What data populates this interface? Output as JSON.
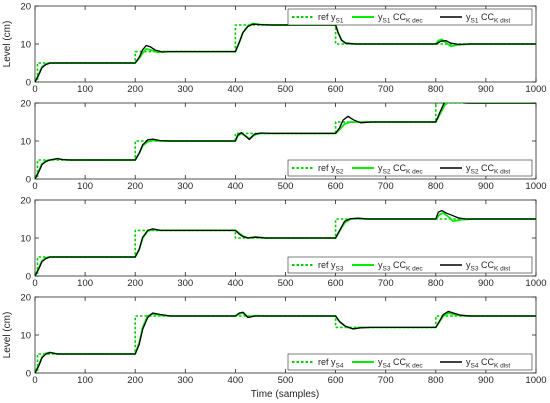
{
  "chart_data": {
    "type": "line",
    "xlabel": "Time (samples)",
    "xlim": [
      0,
      1000
    ],
    "xticks": [
      0,
      100,
      200,
      300,
      400,
      500,
      600,
      700,
      800,
      900,
      1000
    ],
    "colors": {
      "reference": "#00cc00",
      "decentralized": "#00ee00",
      "distributed": "#000000"
    },
    "panels": [
      {
        "ylabel": "Level (cm)",
        "ylim": [
          0,
          20
        ],
        "yticks": [
          0,
          10,
          20
        ],
        "legend_position": "top-right",
        "legend": [
          {
            "prefix": "ref y",
            "sub": "S1",
            "mid": "",
            "sub2": ""
          },
          {
            "prefix": "y",
            "sub": "S1",
            "mid": " CC",
            "sub2": "K dec"
          },
          {
            "prefix": "y",
            "sub": "S1",
            "mid": " CC",
            "sub2": "K dist"
          }
        ],
        "series": [
          {
            "name": "ref yS1",
            "style": "reference",
            "x": [
              0,
              5,
              5,
              200,
              200,
              400,
              400,
              600,
              600,
              800,
              800,
              1000
            ],
            "y": [
              0,
              0,
              5,
              5,
              8,
              8,
              15,
              15,
              10,
              10,
              10,
              10
            ]
          },
          {
            "name": "yS1 CCK dec",
            "style": "decentralized",
            "x": [
              0,
              8,
              14,
              22,
              30,
              200,
              208,
              215,
              222,
              232,
              245,
              260,
              400,
              408,
              415,
              425,
              435,
              450,
              470,
              600,
              605,
              612,
              620,
              640,
              800,
              805,
              812,
              820,
              830,
              845,
              870,
              1000
            ],
            "y": [
              0,
              2.2,
              4,
              4.7,
              5,
              5,
              6.2,
              7.6,
              8.7,
              8.4,
              7.8,
              8,
              8,
              10.5,
              13,
              14.8,
              15.4,
              15.1,
              15,
              15,
              13,
              11,
              10.2,
              10,
              10,
              10.9,
              11.2,
              10.4,
              9.4,
              9.8,
              10,
              10
            ]
          },
          {
            "name": "yS1 CCK dist",
            "style": "distributed",
            "x": [
              0,
              8,
              14,
              22,
              30,
              200,
              208,
              215,
              222,
              230,
              240,
              255,
              270,
              400,
              408,
              415,
              425,
              435,
              450,
              470,
              600,
              605,
              612,
              620,
              640,
              800,
              810,
              820,
              830,
              845,
              870,
              1000
            ],
            "y": [
              0,
              2,
              3.8,
              4.6,
              5,
              5,
              6.5,
              8.5,
              9.6,
              9.3,
              8.4,
              7.9,
              8,
              8,
              10.5,
              13,
              14.6,
              15.2,
              15.1,
              15,
              15,
              13,
              11,
              10.2,
              10,
              10,
              10.7,
              10.9,
              10.2,
              9.9,
              10,
              10
            ]
          }
        ]
      },
      {
        "ylabel": "",
        "ylim": [
          0,
          20
        ],
        "yticks": [
          0,
          10,
          20
        ],
        "legend_position": "bottom-right",
        "legend": [
          {
            "prefix": "ref y",
            "sub": "S2",
            "mid": "",
            "sub2": ""
          },
          {
            "prefix": "y",
            "sub": "S2",
            "mid": " CC",
            "sub2": "K dec"
          },
          {
            "prefix": "y",
            "sub": "S2",
            "mid": " CC",
            "sub2": "K dist"
          }
        ],
        "series": [
          {
            "name": "ref yS2",
            "style": "reference",
            "x": [
              0,
              5,
              5,
              200,
              200,
              400,
              400,
              600,
              600,
              800,
              800,
              1000
            ],
            "y": [
              0,
              0,
              5,
              5,
              10,
              10,
              12,
              12,
              15,
              15,
              20,
              20
            ]
          },
          {
            "name": "yS2 CCK dec",
            "style": "decentralized",
            "x": [
              0,
              8,
              14,
              22,
              30,
              45,
              55,
              70,
              200,
              208,
              215,
              225,
              235,
              250,
              270,
              400,
              405,
              412,
              420,
              428,
              438,
              450,
              470,
              600,
              608,
              618,
              630,
              645,
              665,
              800,
              808,
              818,
              830,
              845,
              870,
              1000
            ],
            "y": [
              0,
              2.2,
              4,
              4.8,
              5,
              5.3,
              5.1,
              5,
              5,
              6.8,
              8.8,
              9.8,
              10.2,
              10,
              10,
              10,
              11.4,
              12,
              11.4,
              10.6,
              11.6,
              12,
              12,
              12,
              13,
              14.5,
              15,
              15,
              15,
              15,
              17,
              19.5,
              20.5,
              20.2,
              20,
              20
            ]
          },
          {
            "name": "yS2 CCK dist",
            "style": "distributed",
            "x": [
              0,
              8,
              14,
              22,
              30,
              45,
              55,
              70,
              200,
              208,
              215,
              225,
              235,
              250,
              270,
              400,
              405,
              412,
              420,
              428,
              438,
              450,
              470,
              600,
              608,
              615,
              625,
              635,
              650,
              670,
              800,
              808,
              818,
              828,
              840,
              860,
              1000
            ],
            "y": [
              0,
              2,
              3.8,
              4.6,
              5,
              5.4,
              5.1,
              5,
              5,
              6.8,
              9,
              10.3,
              10.5,
              10.1,
              10,
              10,
              11.6,
              12.2,
              11.3,
              10.4,
              11.8,
              12.1,
              12,
              12,
              13.5,
              15.5,
              16.5,
              15.6,
              14.8,
              15,
              15,
              17.5,
              20.4,
              21.2,
              20.4,
              20,
              20
            ]
          }
        ]
      },
      {
        "ylabel": "",
        "ylim": [
          0,
          20
        ],
        "yticks": [
          0,
          10,
          20
        ],
        "legend_position": "bottom-right",
        "legend": [
          {
            "prefix": "ref y",
            "sub": "S3",
            "mid": "",
            "sub2": ""
          },
          {
            "prefix": "y",
            "sub": "S3",
            "mid": " CC",
            "sub2": "K dec"
          },
          {
            "prefix": "y",
            "sub": "S3",
            "mid": " CC",
            "sub2": "K dist"
          }
        ],
        "series": [
          {
            "name": "ref yS3",
            "style": "reference",
            "x": [
              0,
              5,
              5,
              200,
              200,
              400,
              400,
              600,
              600,
              800,
              800,
              1000
            ],
            "y": [
              0,
              0,
              5,
              5,
              12,
              12,
              10,
              10,
              15,
              15,
              15,
              15
            ]
          },
          {
            "name": "yS3 CCK dec",
            "style": "decentralized",
            "x": [
              0,
              8,
              14,
              22,
              30,
              200,
              208,
              215,
              225,
              235,
              250,
              270,
              400,
              408,
              415,
              425,
              440,
              460,
              480,
              600,
              608,
              618,
              630,
              645,
              665,
              800,
              808,
              815,
              825,
              835,
              850,
              870,
              1000
            ],
            "y": [
              0,
              2.2,
              4,
              4.8,
              5,
              5,
              7,
              10,
              11.8,
              12.3,
              12,
              12,
              12,
              11.2,
              10.5,
              10,
              10.3,
              10,
              10,
              10,
              11.8,
              14,
              15,
              15.1,
              15,
              15,
              16.2,
              16.6,
              15.6,
              14.4,
              14.8,
              15,
              15
            ]
          },
          {
            "name": "yS3 CCK dist",
            "style": "distributed",
            "x": [
              0,
              8,
              14,
              22,
              30,
              200,
              208,
              215,
              225,
              235,
              250,
              270,
              400,
              408,
              415,
              425,
              440,
              460,
              480,
              600,
              608,
              618,
              630,
              645,
              665,
              800,
              805,
              812,
              822,
              832,
              845,
              860,
              880,
              1000
            ],
            "y": [
              0,
              2,
              3.8,
              4.6,
              5,
              5,
              7,
              10.2,
              12,
              12.4,
              12,
              12,
              12,
              11,
              10.4,
              10,
              10.2,
              10,
              10,
              10,
              12,
              14.4,
              15.1,
              15.2,
              15,
              15,
              16.8,
              17.2,
              16.5,
              16,
              15.3,
              15,
              15,
              15
            ]
          }
        ]
      },
      {
        "ylabel": "Level (cm)",
        "ylim": [
          0,
          20
        ],
        "yticks": [
          0,
          10,
          20
        ],
        "legend_position": "bottom-right",
        "legend": [
          {
            "prefix": "ref y",
            "sub": "S4",
            "mid": "",
            "sub2": ""
          },
          {
            "prefix": "y",
            "sub": "S4",
            "mid": " CC",
            "sub2": "K dec"
          },
          {
            "prefix": "y",
            "sub": "S4",
            "mid": " CC",
            "sub2": "K dist"
          }
        ],
        "series": [
          {
            "name": "ref yS4",
            "style": "reference",
            "x": [
              0,
              5,
              5,
              200,
              200,
              400,
              400,
              600,
              600,
              800,
              800,
              1000
            ],
            "y": [
              0,
              0,
              5,
              5,
              15,
              15,
              15,
              15,
              12,
              12,
              15,
              15
            ]
          },
          {
            "name": "yS4 CCK dec",
            "style": "decentralized",
            "x": [
              0,
              8,
              14,
              22,
              30,
              45,
              60,
              200,
              208,
              215,
              225,
              235,
              250,
              270,
              400,
              408,
              415,
              425,
              440,
              460,
              600,
              608,
              620,
              635,
              650,
              670,
              800,
              808,
              815,
              825,
              840,
              860,
              1000
            ],
            "y": [
              0,
              2.2,
              4.2,
              5.2,
              5.4,
              5,
              5,
              5,
              8,
              12,
              15,
              15.6,
              15.2,
              15,
              15,
              15.6,
              15.8,
              14.8,
              15.1,
              15,
              15,
              13.5,
              12.2,
              11.6,
              12,
              12,
              12,
              13.6,
              15,
              15.8,
              15.3,
              15,
              15
            ]
          },
          {
            "name": "yS4 CCK dist",
            "style": "distributed",
            "x": [
              0,
              8,
              14,
              22,
              30,
              45,
              60,
              200,
              208,
              215,
              225,
              235,
              250,
              270,
              400,
              408,
              415,
              425,
              440,
              460,
              600,
              608,
              620,
              635,
              650,
              670,
              800,
              808,
              815,
              825,
              835,
              850,
              870,
              1000
            ],
            "y": [
              0,
              2,
              4,
              5,
              5.4,
              5,
              5,
              5,
              7.5,
              11.5,
              14.6,
              15.8,
              15.4,
              15,
              15,
              15.8,
              16,
              14.6,
              15,
              15,
              15,
              13.5,
              12.3,
              11.6,
              11.9,
              12,
              12,
              13.8,
              15.4,
              16.2,
              15.8,
              15.2,
              15,
              15
            ]
          }
        ]
      }
    ]
  }
}
